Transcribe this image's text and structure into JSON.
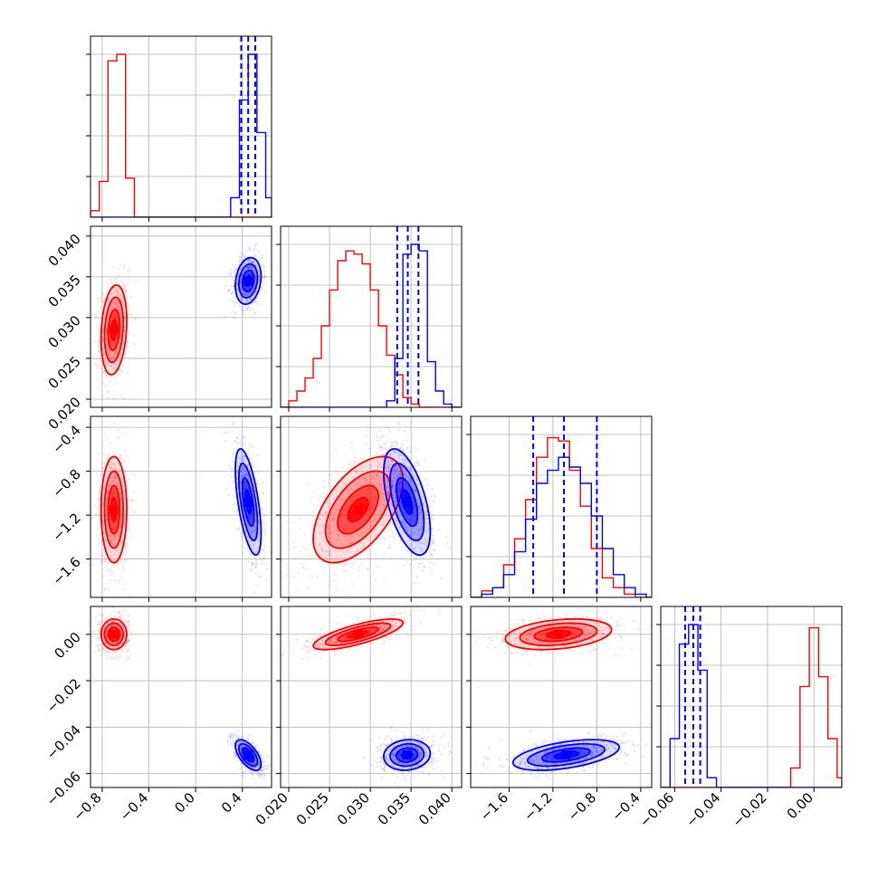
{
  "chart_data": {
    "type": "corner",
    "title": "",
    "parameters": [
      {
        "name": "",
        "range": [
          -0.9,
          0.65
        ],
        "ticks": [
          "−0.8",
          "−0.4",
          "0.0",
          "0.4"
        ],
        "tick_values": [
          -0.8,
          -0.4,
          0.0,
          0.4
        ]
      },
      {
        "name": "",
        "range": [
          0.019,
          0.0412
        ],
        "ticks": [
          "0.020",
          "0.025",
          "0.030",
          "0.035",
          "0.040"
        ],
        "tick_values": [
          0.02,
          0.025,
          0.03,
          0.035,
          0.04
        ]
      },
      {
        "name": "",
        "range": [
          -1.95,
          -0.3
        ],
        "ticks": [
          "−1.6",
          "−1.2",
          "−0.8",
          "−0.4"
        ],
        "tick_values": [
          -1.6,
          -1.2,
          -0.8,
          -0.4
        ]
      },
      {
        "name": "",
        "range": [
          -0.066,
          0.012
        ],
        "ticks": [
          "−0.06",
          "−0.04",
          "−0.02",
          "0.00"
        ],
        "tick_values": [
          -0.06,
          -0.04,
          -0.02,
          0.0
        ]
      }
    ],
    "series": [
      {
        "name": "",
        "color": "#ff0000",
        "mean": [
          -0.7,
          0.0285,
          -1.15,
          0.0
        ],
        "std": [
          0.05,
          0.0025,
          0.22,
          0.003
        ],
        "correlations": {
          "0-1": 0.2,
          "0-2": 0.0,
          "0-3": 0.0,
          "1-2": 0.55,
          "1-3": 0.75,
          "2-3": 0.3
        }
      },
      {
        "name": "",
        "color": "#0000ff",
        "mean": [
          0.45,
          0.0345,
          -1.08,
          -0.052
        ],
        "std": [
          0.05,
          0.0013,
          0.22,
          0.003
        ],
        "correlations": {
          "0-1": 0.2,
          "0-2": -0.6,
          "0-3": -0.6,
          "1-2": -0.55,
          "1-3": 0.1,
          "2-3": 0.5
        },
        "quantiles": [
          [
            0.39,
            0.45,
            0.51
          ],
          [
            0.0333,
            0.0346,
            0.0359
          ],
          [
            -1.38,
            -1.1,
            -0.8
          ],
          [
            -0.0555,
            -0.052,
            -0.049
          ]
        ]
      }
    ],
    "histograms": [
      {
        "bins": [
          -0.9,
          -0.825,
          -0.75,
          -0.675,
          -0.6,
          -0.525,
          -0.45,
          -0.375,
          -0.3,
          -0.225,
          -0.15,
          -0.075,
          0.0,
          0.075,
          0.15,
          0.225,
          0.3,
          0.375,
          0.45,
          0.525,
          0.6,
          0.65
        ],
        "red": [
          0.04,
          0.22,
          0.96,
          1.0,
          0.24,
          0.0,
          0.0,
          0.0,
          0.0,
          0.0,
          0.0,
          0.0,
          0.0,
          0.0,
          0.0,
          0.0,
          0.0,
          0.0,
          0.0,
          0.0,
          0.0
        ],
        "blue": [
          0.0,
          0.0,
          0.0,
          0.0,
          0.0,
          0.0,
          0.0,
          0.0,
          0.0,
          0.0,
          0.0,
          0.0,
          0.0,
          0.0,
          0.0,
          0.0,
          0.12,
          0.72,
          1.0,
          0.52,
          0.12
        ]
      },
      {
        "bins": [
          0.019,
          0.02,
          0.021,
          0.022,
          0.023,
          0.024,
          0.025,
          0.026,
          0.027,
          0.028,
          0.029,
          0.03,
          0.031,
          0.032,
          0.033,
          0.034,
          0.035,
          0.036,
          0.037,
          0.038,
          0.039,
          0.04,
          0.0412
        ],
        "red": [
          0.0,
          0.04,
          0.1,
          0.18,
          0.3,
          0.5,
          0.72,
          0.9,
          0.96,
          0.94,
          0.88,
          0.72,
          0.5,
          0.32,
          0.2,
          0.06,
          0.02,
          0.0,
          0.0,
          0.0,
          0.0,
          0.0
        ],
        "blue": [
          0.0,
          0.0,
          0.0,
          0.0,
          0.0,
          0.0,
          0.0,
          0.0,
          0.0,
          0.0,
          0.0,
          0.0,
          0.0,
          0.04,
          0.3,
          0.94,
          1.0,
          0.96,
          0.28,
          0.1,
          0.02,
          0.0
        ]
      },
      {
        "bins": [
          -1.95,
          -1.85,
          -1.75,
          -1.65,
          -1.55,
          -1.45,
          -1.35,
          -1.25,
          -1.15,
          -1.05,
          -0.95,
          -0.85,
          -0.75,
          -0.65,
          -0.55,
          -0.45,
          -0.35,
          -0.3
        ],
        "red": [
          0.0,
          0.04,
          0.06,
          0.2,
          0.36,
          0.6,
          0.86,
          0.98,
          0.96,
          0.78,
          0.56,
          0.3,
          0.12,
          0.06,
          0.02,
          0.0,
          0.0
        ],
        "blue": [
          0.0,
          0.02,
          0.06,
          0.14,
          0.28,
          0.48,
          0.7,
          0.78,
          0.86,
          0.8,
          0.7,
          0.5,
          0.3,
          0.14,
          0.06,
          0.02,
          0.0
        ]
      },
      {
        "bins": [
          -0.066,
          -0.062,
          -0.058,
          -0.054,
          -0.05,
          -0.046,
          -0.042,
          -0.038,
          -0.034,
          -0.03,
          -0.026,
          -0.022,
          -0.018,
          -0.014,
          -0.01,
          -0.006,
          -0.002,
          0.002,
          0.006,
          0.01,
          0.012
        ],
        "red": [
          0.0,
          0.0,
          0.0,
          0.0,
          0.0,
          0.0,
          0.0,
          0.0,
          0.0,
          0.0,
          0.0,
          0.0,
          0.0,
          0.0,
          0.12,
          0.62,
          0.98,
          0.68,
          0.3,
          0.06
        ],
        "blue": [
          0.0,
          0.3,
          0.88,
          1.0,
          0.72,
          0.06,
          0.0,
          0.0,
          0.0,
          0.0,
          0.0,
          0.0,
          0.0,
          0.0,
          0.0,
          0.0,
          0.0,
          0.0,
          0.0,
          0.0
        ]
      }
    ],
    "grid": true
  }
}
